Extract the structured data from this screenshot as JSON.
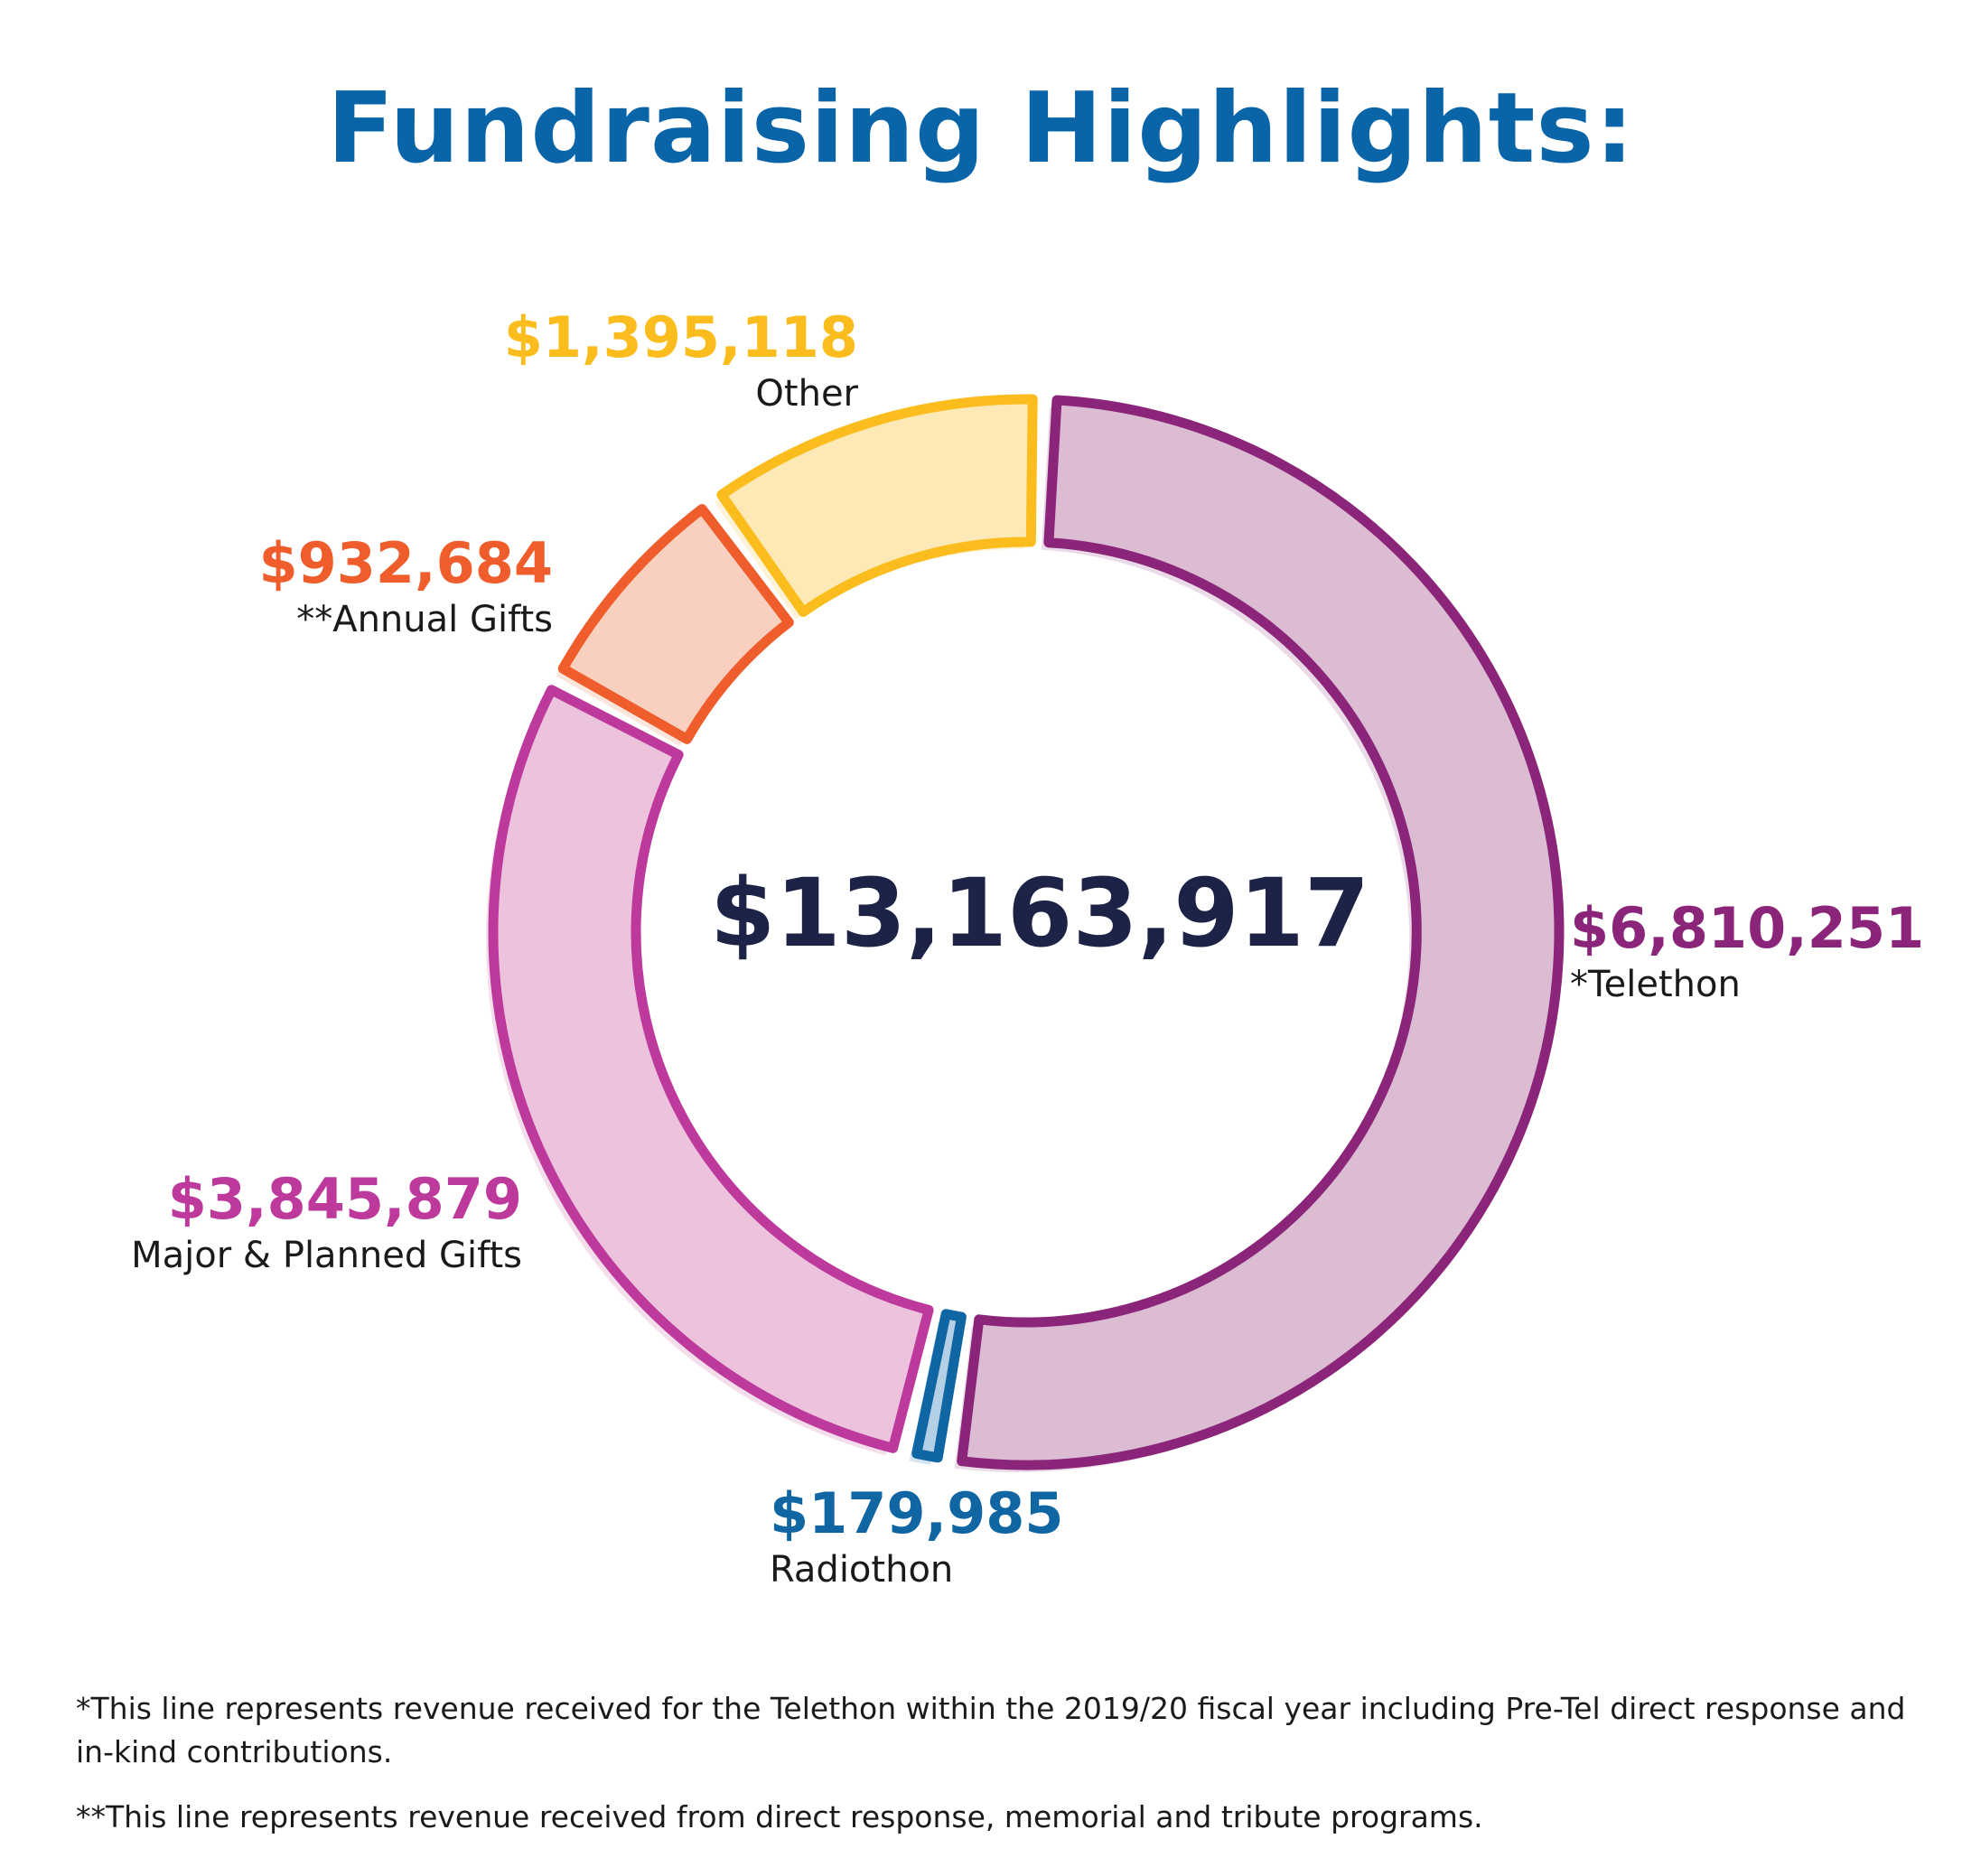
{
  "title": "Fundraising Highlights:",
  "colors": {
    "title": "#0a64a8",
    "total": "#1c2347",
    "telethon": "#8a2579",
    "telethon_fill": "#dbbcd3",
    "radiothon": "#0f66a2",
    "radiothon_fill": "#b3d0e6",
    "major": "#bd3a9c",
    "major_fill": "#ecc2dd",
    "annual": "#ee5d2b",
    "annual_fill": "#f9cfbf",
    "other": "#fbbd1e",
    "other_fill": "#fde9b5"
  },
  "chart_data": {
    "type": "pie",
    "variant": "donut",
    "title": "Fundraising Highlights:",
    "total": "$13,163,917",
    "slices": [
      {
        "key": "telethon",
        "value": 6810251,
        "value_label": "$6,810,251",
        "label": "*Telethon"
      },
      {
        "key": "radiothon",
        "value": 179985,
        "value_label": "$179,985",
        "label": "Radiothon"
      },
      {
        "key": "major",
        "value": 3845879,
        "value_label": "$3,845,879",
        "label": "Major & Planned Gifts"
      },
      {
        "key": "annual",
        "value": 932684,
        "value_label": "$932,684",
        "label": "**Annual Gifts"
      },
      {
        "key": "other",
        "value": 1395118,
        "value_label": "$1,395,118",
        "label": "Other"
      }
    ]
  },
  "footnotes": {
    "telethon": "*This line represents revenue received for the Telethon within the 2019/20 fiscal year including Pre-Tel direct response and in-kind contributions.",
    "annual": "**This line represents revenue received from direct response, memorial and tribute programs."
  }
}
